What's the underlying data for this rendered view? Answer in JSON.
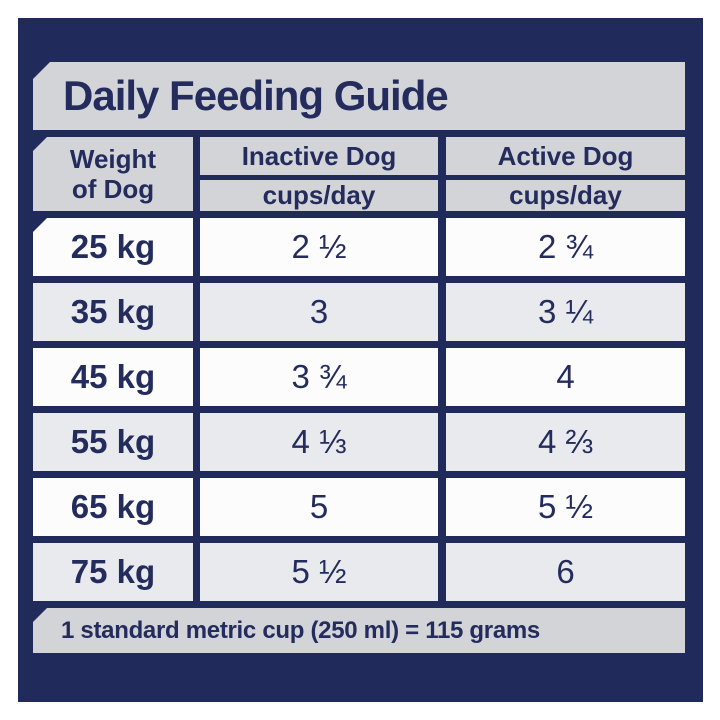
{
  "title": "Daily Feeding Guide",
  "table": {
    "weight_header": "Weight\nof Dog",
    "columns": [
      {
        "label": "Inactive Dog",
        "units": "cups/day"
      },
      {
        "label": "Active Dog",
        "units": "cups/day"
      }
    ],
    "rows": [
      {
        "weight": "25 kg",
        "inactive": "2 ½",
        "active": "2 ¾"
      },
      {
        "weight": "35 kg",
        "inactive": "3",
        "active": "3 ¼"
      },
      {
        "weight": "45 kg",
        "inactive": "3 ¾",
        "active": "4"
      },
      {
        "weight": "55 kg",
        "inactive": "4 ⅓",
        "active": "4 ⅔"
      },
      {
        "weight": "65 kg",
        "inactive": "5",
        "active": "5 ½"
      },
      {
        "weight": "75 kg",
        "inactive": "5 ½",
        "active": "6"
      }
    ]
  },
  "footnote": "1 standard metric cup (250 ml) = 115 grams",
  "colors": {
    "panel_navy": "#212B5B",
    "text_navy": "#232C5C",
    "banner_gray": "#D3D4D8",
    "row_shade_gray": "#E9EAEE",
    "row_white": "#FCFCFD",
    "page_background": "#FFFFFF"
  },
  "chart_data": {
    "type": "table",
    "title": "Daily Feeding Guide",
    "columns": [
      "Weight of Dog",
      "Inactive Dog (cups/day)",
      "Active Dog (cups/day)"
    ],
    "rows": [
      [
        "25 kg",
        "2 1/2",
        "2 3/4"
      ],
      [
        "35 kg",
        "3",
        "3 1/4"
      ],
      [
        "45 kg",
        "3 3/4",
        "4"
      ],
      [
        "55 kg",
        "4 1/3",
        "4 2/3"
      ],
      [
        "65 kg",
        "5",
        "5 1/2"
      ],
      [
        "75 kg",
        "5 1/2",
        "6"
      ]
    ],
    "categories_weight_kg": [
      25,
      35,
      45,
      55,
      65,
      75
    ],
    "series": [
      {
        "name": "Inactive Dog cups/day",
        "values": [
          2.5,
          3,
          3.75,
          4.33,
          5,
          5.5
        ]
      },
      {
        "name": "Active Dog cups/day",
        "values": [
          2.75,
          3.25,
          4,
          4.67,
          5.5,
          6
        ]
      }
    ],
    "footnote": "1 standard metric cup (250 ml) = 115 grams"
  }
}
